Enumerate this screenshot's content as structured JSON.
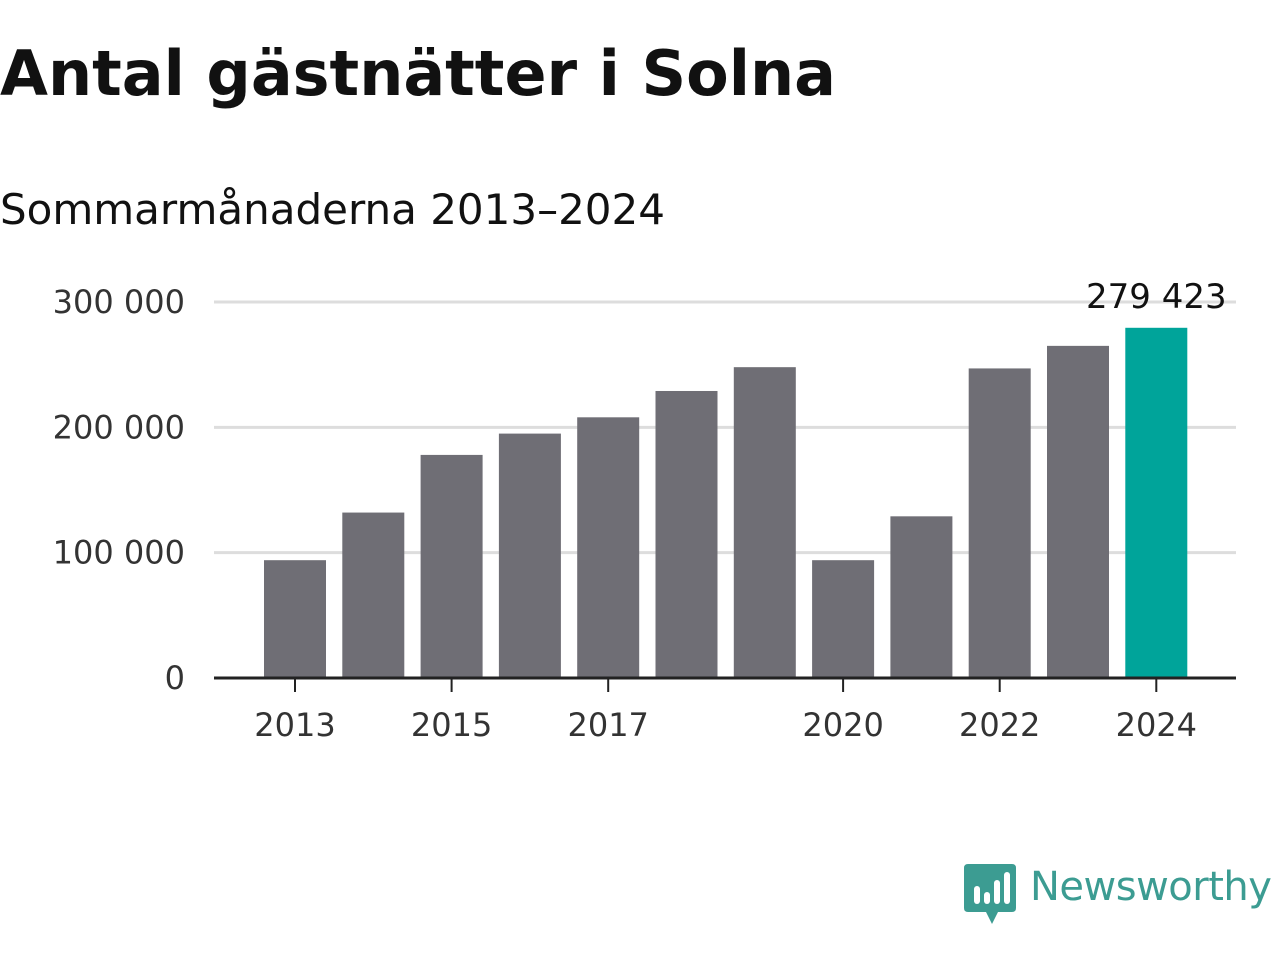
{
  "header": {
    "title": "Antal gästnätter i Solna",
    "subtitle": "Sommarmånaderna 2013–2024"
  },
  "chart_data": {
    "type": "bar",
    "title": "Antal gästnätter i Solna",
    "subtitle": "Sommarmånaderna 2013–2024",
    "xlabel": "",
    "ylabel": "",
    "categories": [
      2013,
      2014,
      2015,
      2016,
      2017,
      2018,
      2019,
      2020,
      2021,
      2022,
      2023,
      2024
    ],
    "values": [
      94000,
      132000,
      178000,
      195000,
      208000,
      229000,
      248000,
      94000,
      129000,
      247000,
      265000,
      279423
    ],
    "ylim": [
      0,
      300000
    ],
    "y_ticks": [
      0,
      100000,
      200000,
      300000
    ],
    "y_tick_labels": [
      "0",
      "100 000",
      "200 000",
      "300 000"
    ],
    "x_tick_labels": [
      "2013",
      "2015",
      "2017",
      "2020",
      "2022",
      "2024"
    ],
    "grid": true,
    "highlight": {
      "category": 2024,
      "label": "279 423"
    },
    "colors": {
      "bar": "#6f6e75",
      "highlight": "#00a49a",
      "grid": "#dddddd",
      "axis": "#222222"
    }
  },
  "brand": {
    "name": "Newsworthy",
    "color": "#3c9c92",
    "icon": "newsworthy-chart-bubble-icon"
  }
}
